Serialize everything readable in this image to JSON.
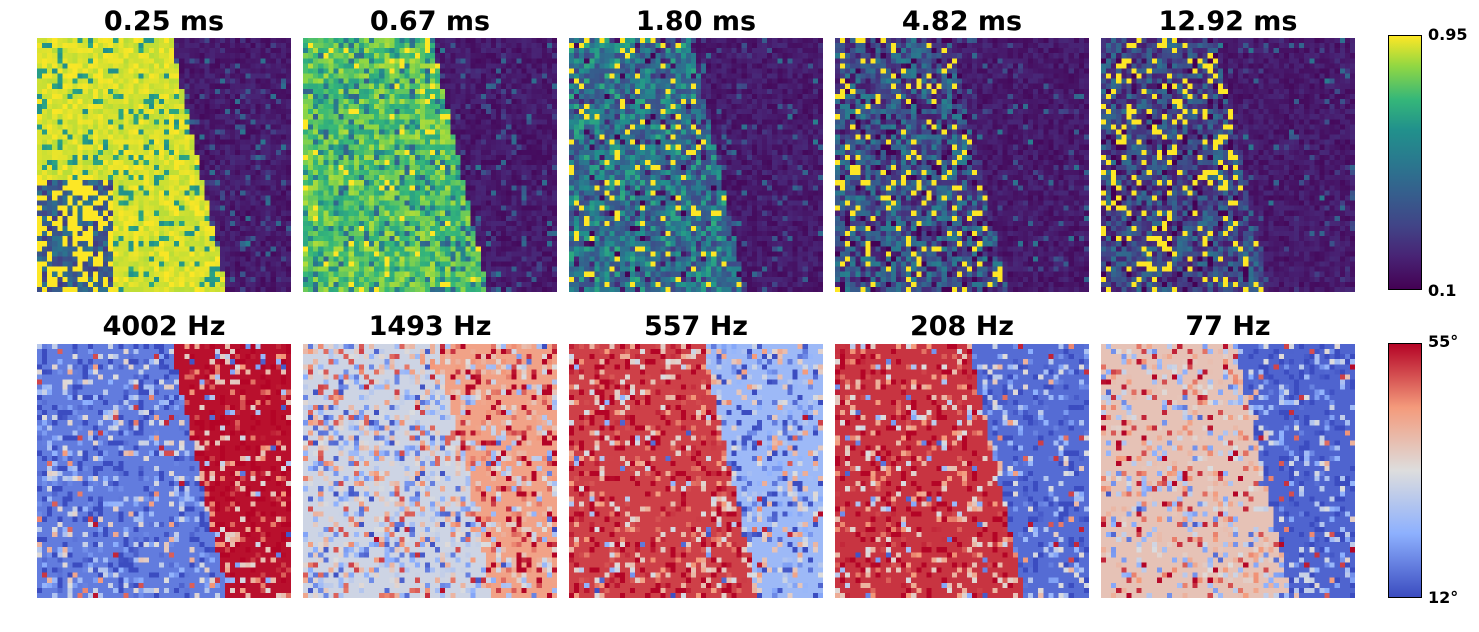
{
  "chart_data": [
    {
      "type": "heatmap",
      "row": "top",
      "colormap": "viridis",
      "colorbar": {
        "min": 0.1,
        "max": 0.95,
        "min_label": "0.1",
        "max_label": "0.95"
      },
      "panels": [
        {
          "title": "0.25 ms",
          "boundary_shift": 0.0,
          "bright_level": 1.0,
          "texture": 0.05
        },
        {
          "title": "0.67 ms",
          "boundary_shift": -0.02,
          "bright_level": 0.92,
          "texture": 0.15
        },
        {
          "title": "1.80 ms",
          "boundary_shift": -0.05,
          "bright_level": 0.72,
          "texture": 0.28
        },
        {
          "title": "4.82 ms",
          "boundary_shift": -0.07,
          "bright_level": 0.55,
          "texture": 0.3
        },
        {
          "title": "12.92 ms",
          "boundary_shift": -0.08,
          "bright_level": 0.48,
          "texture": 0.25
        }
      ]
    },
    {
      "type": "heatmap",
      "row": "bottom",
      "colormap": "coolwarm",
      "colorbar": {
        "min": 12,
        "max": 55,
        "min_label": "12°",
        "max_label": "55°"
      },
      "panels": [
        {
          "title": "4002 Hz",
          "left_value": 0.12,
          "right_value": 0.98,
          "noise": 0.35
        },
        {
          "title": "1493 Hz",
          "left_value": 0.45,
          "right_value": 0.72,
          "noise": 0.4
        },
        {
          "title": "557 Hz",
          "left_value": 0.9,
          "right_value": 0.3,
          "noise": 0.35
        },
        {
          "title": "208 Hz",
          "left_value": 0.92,
          "right_value": 0.08,
          "noise": 0.3
        },
        {
          "title": "77 Hz",
          "left_value": 0.6,
          "right_value": 0.06,
          "noise": 0.3
        }
      ]
    }
  ]
}
